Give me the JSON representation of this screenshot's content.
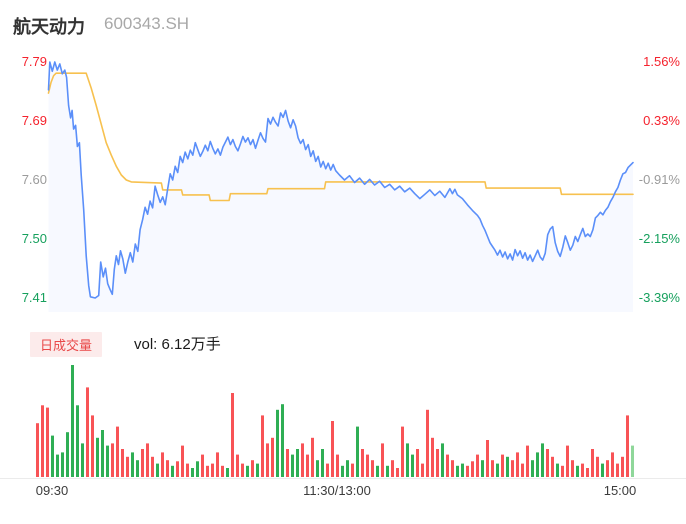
{
  "header": {
    "stock_name": "航天动力",
    "stock_code": "600343.SH"
  },
  "volume": {
    "tab_label": "日成交量",
    "vol_label": "vol: 6.12万手"
  },
  "colors": {
    "price_line": "#5b8ff9",
    "avg_line": "#f7c14f",
    "area_fill": "rgba(91,143,249,0.05)",
    "label_red": "#f5222d",
    "label_green": "#16a05d",
    "label_gray": "#9b9b9b",
    "bar_red": "#f85356",
    "bar_green": "#2eae54",
    "bar_lightgreen": "#8fd79a",
    "badge_bg": "#fcebeb",
    "badge_text": "#e94848"
  },
  "chart_data": {
    "type": "line",
    "title": "航天动力 600343.SH 分时图",
    "legend_position": "none",
    "grid": false,
    "x_axis": {
      "labels": [
        "09:30",
        "11:30/13:00",
        "15:00"
      ],
      "minutes_total": 240
    },
    "y_axis_left": [
      {
        "label": "7.79",
        "color": "#f5222d"
      },
      {
        "label": "7.69",
        "color": "#f5222d"
      },
      {
        "label": "7.60",
        "color": "#9b9b9b"
      },
      {
        "label": "7.50",
        "color": "#16a05d"
      },
      {
        "label": "7.41",
        "color": "#16a05d"
      }
    ],
    "y_axis_right": [
      {
        "label": "1.56%",
        "color": "#f5222d"
      },
      {
        "label": "0.33%",
        "color": "#f5222d"
      },
      {
        "label": "-0.91%",
        "color": "#9b9b9b"
      },
      {
        "label": "-2.15%",
        "color": "#16a05d"
      },
      {
        "label": "-3.39%",
        "color": "#16a05d"
      }
    ],
    "price_axis": {
      "top": 7.79,
      "bottom": 7.41
    },
    "series": {
      "price": [
        [
          5,
          7.745
        ],
        [
          5.5,
          7.79
        ],
        [
          6.5,
          7.775
        ],
        [
          7.5,
          7.79
        ],
        [
          8.5,
          7.777
        ],
        [
          9.5,
          7.787
        ],
        [
          10.5,
          7.771
        ],
        [
          11.5,
          7.777
        ],
        [
          12.2,
          7.765
        ],
        [
          13,
          7.72
        ],
        [
          13.8,
          7.7
        ],
        [
          14.4,
          7.712
        ],
        [
          15,
          7.682
        ],
        [
          15.8,
          7.688
        ],
        [
          16.5,
          7.654
        ],
        [
          17.3,
          7.66
        ],
        [
          18,
          7.608
        ],
        [
          19,
          7.552
        ],
        [
          20,
          7.478
        ],
        [
          21,
          7.43
        ],
        [
          21.7,
          7.412
        ],
        [
          23.6,
          7.41
        ],
        [
          25,
          7.414
        ],
        [
          25.8,
          7.468
        ],
        [
          26.8,
          7.444
        ],
        [
          27.7,
          7.458
        ],
        [
          28.6,
          7.433
        ],
        [
          29.5,
          7.424
        ],
        [
          30.4,
          7.416
        ],
        [
          31.2,
          7.456
        ],
        [
          32,
          7.478
        ],
        [
          32.9,
          7.464
        ],
        [
          33.7,
          7.486
        ],
        [
          34.6,
          7.473
        ],
        [
          35.6,
          7.45
        ],
        [
          36.6,
          7.468
        ],
        [
          37.6,
          7.483
        ],
        [
          38.6,
          7.468
        ],
        [
          39.6,
          7.497
        ],
        [
          40.6,
          7.485
        ],
        [
          41.5,
          7.52
        ],
        [
          42.5,
          7.536
        ],
        [
          43.5,
          7.556
        ],
        [
          44.5,
          7.545
        ],
        [
          45.5,
          7.566
        ],
        [
          46.5,
          7.555
        ],
        [
          47.5,
          7.59
        ],
        [
          48.5,
          7.576
        ],
        [
          49.5,
          7.564
        ],
        [
          50.5,
          7.573
        ],
        [
          51.5,
          7.56
        ],
        [
          52.5,
          7.586
        ],
        [
          53.5,
          7.61
        ],
        [
          54.5,
          7.6
        ],
        [
          55.5,
          7.622
        ],
        [
          56.5,
          7.612
        ],
        [
          57.5,
          7.638
        ],
        [
          58.5,
          7.628
        ],
        [
          59.5,
          7.645
        ],
        [
          60.5,
          7.634
        ],
        [
          61.5,
          7.648
        ],
        [
          62.5,
          7.64
        ],
        [
          63.5,
          7.66
        ],
        [
          64.5,
          7.649
        ],
        [
          65.5,
          7.638
        ],
        [
          66.5,
          7.646
        ],
        [
          67.5,
          7.656
        ],
        [
          68.5,
          7.647
        ],
        [
          69.5,
          7.662
        ],
        [
          70.5,
          7.651
        ],
        [
          71.5,
          7.642
        ],
        [
          72.5,
          7.65
        ],
        [
          73.5,
          7.64
        ],
        [
          74.5,
          7.653
        ],
        [
          75.5,
          7.661
        ],
        [
          76.5,
          7.669
        ],
        [
          77.5,
          7.657
        ],
        [
          78.5,
          7.665
        ],
        [
          79.5,
          7.654
        ],
        [
          80.5,
          7.647
        ],
        [
          81.5,
          7.658
        ],
        [
          82.5,
          7.67
        ],
        [
          83.5,
          7.661
        ],
        [
          84.5,
          7.668
        ],
        [
          85.5,
          7.657
        ],
        [
          86.5,
          7.665
        ],
        [
          87.5,
          7.651
        ],
        [
          88.5,
          7.664
        ],
        [
          89.5,
          7.676
        ],
        [
          90.5,
          7.667
        ],
        [
          91.5,
          7.661
        ],
        [
          92.5,
          7.699
        ],
        [
          93.5,
          7.69
        ],
        [
          94.5,
          7.701
        ],
        [
          95.5,
          7.693
        ],
        [
          96.5,
          7.687
        ],
        [
          97.5,
          7.708
        ],
        [
          98.5,
          7.701
        ],
        [
          99.5,
          7.712
        ],
        [
          100.5,
          7.695
        ],
        [
          101.5,
          7.684
        ],
        [
          102.5,
          7.697
        ],
        [
          103.5,
          7.687
        ],
        [
          104.5,
          7.668
        ],
        [
          105.5,
          7.659
        ],
        [
          106.5,
          7.665
        ],
        [
          107.5,
          7.649
        ],
        [
          108.5,
          7.657
        ],
        [
          109.5,
          7.638
        ],
        [
          110.5,
          7.647
        ],
        [
          111.5,
          7.63
        ],
        [
          112.5,
          7.638
        ],
        [
          113.5,
          7.621
        ],
        [
          114.5,
          7.63
        ],
        [
          115.5,
          7.618
        ],
        [
          116.5,
          7.627
        ],
        [
          117.5,
          7.616
        ],
        [
          118.5,
          7.625
        ],
        [
          119.5,
          7.615
        ],
        [
          121,
          7.608
        ],
        [
          123,
          7.6
        ],
        [
          125,
          7.607
        ],
        [
          127,
          7.596
        ],
        [
          129,
          7.603
        ],
        [
          131,
          7.593
        ],
        [
          133,
          7.601
        ],
        [
          135,
          7.592
        ],
        [
          137,
          7.598
        ],
        [
          139,
          7.588
        ],
        [
          141,
          7.593
        ],
        [
          143,
          7.584
        ],
        [
          145,
          7.59
        ],
        [
          147,
          7.581
        ],
        [
          149,
          7.587
        ],
        [
          151,
          7.578
        ],
        [
          153,
          7.57
        ],
        [
          155,
          7.577
        ],
        [
          157,
          7.584
        ],
        [
          159,
          7.575
        ],
        [
          161,
          7.582
        ],
        [
          163,
          7.572
        ],
        [
          165,
          7.586
        ],
        [
          166,
          7.578
        ],
        [
          167,
          7.585
        ],
        [
          168,
          7.576
        ],
        [
          170,
          7.57
        ],
        [
          172,
          7.56
        ],
        [
          174,
          7.551
        ],
        [
          176,
          7.543
        ],
        [
          177,
          7.537
        ],
        [
          178,
          7.527
        ],
        [
          179,
          7.519
        ],
        [
          180,
          7.509
        ],
        [
          181,
          7.499
        ],
        [
          182,
          7.493
        ],
        [
          183,
          7.487
        ],
        [
          184,
          7.479
        ],
        [
          185,
          7.487
        ],
        [
          186,
          7.476
        ],
        [
          187,
          7.484
        ],
        [
          188,
          7.473
        ],
        [
          189,
          7.481
        ],
        [
          190,
          7.471
        ],
        [
          191,
          7.488
        ],
        [
          192,
          7.478
        ],
        [
          193,
          7.486
        ],
        [
          194,
          7.474
        ],
        [
          195,
          7.483
        ],
        [
          196,
          7.471
        ],
        [
          197,
          7.479
        ],
        [
          198,
          7.469
        ],
        [
          199,
          7.478
        ],
        [
          200,
          7.487
        ],
        [
          201,
          7.476
        ],
        [
          202,
          7.471
        ],
        [
          203,
          7.482
        ],
        [
          204,
          7.512
        ],
        [
          205,
          7.521
        ],
        [
          206,
          7.525
        ],
        [
          207,
          7.499
        ],
        [
          208,
          7.485
        ],
        [
          209,
          7.477
        ],
        [
          210,
          7.492
        ],
        [
          211,
          7.51
        ],
        [
          212,
          7.499
        ],
        [
          213,
          7.487
        ],
        [
          214,
          7.495
        ],
        [
          215,
          7.509
        ],
        [
          216,
          7.501
        ],
        [
          217,
          7.512
        ],
        [
          218,
          7.522
        ],
        [
          219,
          7.509
        ],
        [
          220,
          7.513
        ],
        [
          221,
          7.509
        ],
        [
          222,
          7.52
        ],
        [
          223,
          7.539
        ],
        [
          224,
          7.543
        ],
        [
          225,
          7.548
        ],
        [
          226,
          7.544
        ],
        [
          227,
          7.551
        ],
        [
          228,
          7.556
        ],
        [
          229,
          7.565
        ],
        [
          230,
          7.572
        ],
        [
          231,
          7.581
        ],
        [
          232,
          7.588
        ],
        [
          233,
          7.6
        ],
        [
          234,
          7.61
        ],
        [
          235,
          7.612
        ],
        [
          236,
          7.62
        ],
        [
          237,
          7.624
        ],
        [
          238,
          7.628
        ]
      ],
      "avg": [
        [
          5,
          7.74
        ],
        [
          6,
          7.757
        ],
        [
          7,
          7.768
        ],
        [
          8,
          7.772
        ],
        [
          20,
          7.772
        ],
        [
          22,
          7.748
        ],
        [
          24,
          7.72
        ],
        [
          26,
          7.69
        ],
        [
          28,
          7.66
        ],
        [
          30,
          7.64
        ],
        [
          32,
          7.622
        ],
        [
          34,
          7.608
        ],
        [
          36,
          7.6
        ],
        [
          38,
          7.597
        ],
        [
          50,
          7.595
        ],
        [
          50.5,
          7.584
        ],
        [
          58,
          7.584
        ],
        [
          58.5,
          7.576
        ],
        [
          69,
          7.576
        ],
        [
          69.5,
          7.567
        ],
        [
          77,
          7.567
        ],
        [
          77.5,
          7.578
        ],
        [
          92,
          7.578
        ],
        [
          92.5,
          7.586
        ],
        [
          115,
          7.586
        ],
        [
          115.5,
          7.597
        ],
        [
          179,
          7.597
        ],
        [
          179.5,
          7.587
        ],
        [
          209,
          7.587
        ],
        [
          209.5,
          7.577
        ],
        [
          238,
          7.577
        ]
      ]
    },
    "volume_bars": {
      "heights": [
        0.48,
        0.64,
        0.62,
        0.37,
        0.2,
        0.22,
        0.4,
        1.0,
        0.64,
        0.3,
        0.8,
        0.55,
        0.35,
        0.42,
        0.28,
        0.3,
        0.45,
        0.25,
        0.18,
        0.22,
        0.15,
        0.25,
        0.3,
        0.18,
        0.12,
        0.22,
        0.15,
        0.1,
        0.14,
        0.28,
        0.12,
        0.08,
        0.14,
        0.2,
        0.1,
        0.12,
        0.22,
        0.1,
        0.08,
        0.75,
        0.2,
        0.12,
        0.1,
        0.15,
        0.12,
        0.55,
        0.3,
        0.35,
        0.6,
        0.65,
        0.25,
        0.2,
        0.25,
        0.3,
        0.2,
        0.35,
        0.15,
        0.25,
        0.12,
        0.5,
        0.2,
        0.1,
        0.15,
        0.12,
        0.45,
        0.25,
        0.2,
        0.15,
        0.1,
        0.3,
        0.1,
        0.15,
        0.08,
        0.45,
        0.3,
        0.2,
        0.25,
        0.12,
        0.6,
        0.35,
        0.25,
        0.3,
        0.2,
        0.15,
        0.1,
        0.12,
        0.1,
        0.14,
        0.2,
        0.15,
        0.33,
        0.15,
        0.12,
        0.2,
        0.18,
        0.15,
        0.22,
        0.12,
        0.28,
        0.15,
        0.22,
        0.3,
        0.25,
        0.18,
        0.12,
        0.1,
        0.28,
        0.15,
        0.1,
        0.12,
        0.08,
        0.25,
        0.18,
        0.12,
        0.15,
        0.22,
        0.12,
        0.18,
        0.55,
        0.28
      ],
      "colors": [
        "r",
        "r",
        "r",
        "g",
        "g",
        "g",
        "g",
        "g",
        "g",
        "g",
        "r",
        "r",
        "g",
        "g",
        "g",
        "r",
        "r",
        "r",
        "r",
        "g",
        "g",
        "r",
        "r",
        "r",
        "g",
        "r",
        "r",
        "g",
        "r",
        "r",
        "r",
        "g",
        "g",
        "r",
        "r",
        "r",
        "r",
        "r",
        "g",
        "r",
        "r",
        "r",
        "g",
        "r",
        "g",
        "r",
        "r",
        "r",
        "g",
        "g",
        "r",
        "g",
        "g",
        "r",
        "r",
        "r",
        "g",
        "g",
        "r",
        "r",
        "r",
        "g",
        "g",
        "r",
        "g",
        "r",
        "r",
        "r",
        "g",
        "r",
        "g",
        "r",
        "r",
        "r",
        "g",
        "g",
        "r",
        "r",
        "r",
        "r",
        "r",
        "g",
        "r",
        "r",
        "g",
        "g",
        "r",
        "r",
        "r",
        "g",
        "r",
        "r",
        "g",
        "r",
        "g",
        "r",
        "r",
        "r",
        "r",
        "g",
        "g",
        "g",
        "r",
        "r",
        "g",
        "r",
        "r",
        "r",
        "g",
        "r",
        "r",
        "r",
        "r",
        "g",
        "r",
        "r",
        "r",
        "r",
        "r",
        "l"
      ]
    }
  }
}
